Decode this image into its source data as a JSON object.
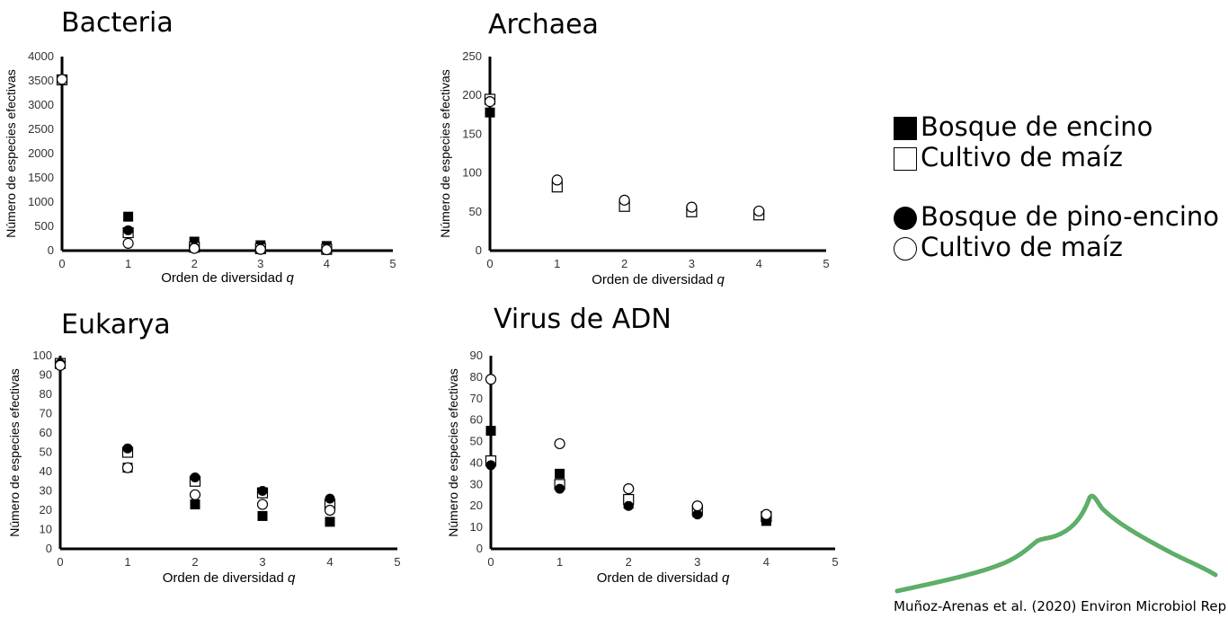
{
  "chart_data": [
    {
      "type": "scatter",
      "title": "Bacteria",
      "xlabel": "Orden de diversidad",
      "xlabel_var": "q",
      "ylabel": "Número de especies efectivas",
      "xlim": [
        0,
        5
      ],
      "ylim": [
        0,
        4000
      ],
      "xticks": [
        0,
        1,
        2,
        3,
        4,
        5
      ],
      "yticks": [
        0,
        500,
        1000,
        1500,
        2000,
        2500,
        3000,
        3500,
        4000
      ],
      "series": [
        {
          "marker": "square-filled",
          "points": [
            [
              0,
              3520
            ],
            [
              1,
              700
            ],
            [
              2,
              185
            ],
            [
              3,
              110
            ],
            [
              4,
              95
            ]
          ]
        },
        {
          "marker": "square-open",
          "points": [
            [
              0,
              3520
            ],
            [
              1,
              370
            ],
            [
              2,
              70
            ],
            [
              3,
              40
            ],
            [
              4,
              25
            ]
          ]
        },
        {
          "marker": "circle-filled",
          "points": [
            [
              0,
              3520
            ],
            [
              1,
              420
            ],
            [
              2,
              70
            ],
            [
              3,
              40
            ],
            [
              4,
              25
            ]
          ]
        },
        {
          "marker": "circle-open",
          "points": [
            [
              0,
              3530
            ],
            [
              1,
              150
            ],
            [
              2,
              45
            ],
            [
              3,
              25
            ],
            [
              4,
              18
            ]
          ]
        }
      ]
    },
    {
      "type": "scatter",
      "title": "Archaea",
      "xlabel": "Orden de diversidad",
      "xlabel_var": "q",
      "ylabel": "Número de especies efectivas",
      "xlim": [
        0,
        5
      ],
      "ylim": [
        0,
        250
      ],
      "xticks": [
        0,
        1,
        2,
        3,
        4,
        5
      ],
      "yticks": [
        0,
        50,
        100,
        150,
        200,
        250
      ],
      "series": [
        {
          "marker": "square-filled",
          "points": [
            [
              0,
              178
            ]
          ]
        },
        {
          "marker": "square-open",
          "points": [
            [
              0,
              195
            ],
            [
              1,
              82
            ],
            [
              2,
              57
            ],
            [
              3,
              50
            ],
            [
              4,
              46
            ]
          ]
        },
        {
          "marker": "circle-filled",
          "points": []
        },
        {
          "marker": "circle-open",
          "points": [
            [
              0,
              192
            ],
            [
              1,
              91
            ],
            [
              2,
              65
            ],
            [
              3,
              56
            ],
            [
              4,
              51
            ]
          ]
        }
      ]
    },
    {
      "type": "scatter",
      "title": "Eukarya",
      "xlabel": "Orden de diversidad",
      "xlabel_var": "q",
      "ylabel": "Número de especies efectivas",
      "xlim": [
        0,
        5
      ],
      "ylim": [
        0,
        100
      ],
      "xticks": [
        0,
        1,
        2,
        3,
        4,
        5
      ],
      "yticks": [
        0,
        10,
        20,
        30,
        40,
        50,
        60,
        70,
        80,
        90,
        100
      ],
      "series": [
        {
          "marker": "square-filled",
          "points": [
            [
              0,
              96
            ],
            [
              1,
              42
            ],
            [
              2,
              23
            ],
            [
              3,
              17
            ],
            [
              4,
              14
            ]
          ]
        },
        {
          "marker": "square-open",
          "points": [
            [
              0,
              96
            ],
            [
              1,
              50
            ],
            [
              2,
              35
            ],
            [
              3,
              29
            ],
            [
              4,
              23
            ]
          ]
        },
        {
          "marker": "circle-filled",
          "points": [
            [
              0,
              96
            ],
            [
              1,
              52
            ],
            [
              2,
              37
            ],
            [
              3,
              30
            ],
            [
              4,
              26
            ]
          ]
        },
        {
          "marker": "circle-open",
          "points": [
            [
              0,
              95
            ],
            [
              1,
              42
            ],
            [
              2,
              28
            ],
            [
              3,
              23
            ],
            [
              4,
              20
            ]
          ]
        }
      ]
    },
    {
      "type": "scatter",
      "title": "Virus de ADN",
      "xlabel": "Orden de diversidad",
      "xlabel_var": "q",
      "ylabel": "Número de especies efectivas",
      "xlim": [
        0,
        5
      ],
      "ylim": [
        0,
        90
      ],
      "xticks": [
        0,
        1,
        2,
        3,
        4,
        5
      ],
      "yticks": [
        0,
        10,
        20,
        30,
        40,
        50,
        60,
        70,
        80,
        90
      ],
      "series": [
        {
          "marker": "square-filled",
          "points": [
            [
              0,
              55
            ],
            [
              1,
              35
            ],
            [
              2,
              21
            ],
            [
              3,
              17
            ],
            [
              4,
              13
            ]
          ]
        },
        {
          "marker": "square-open",
          "points": [
            [
              0,
              41
            ],
            [
              1,
              30
            ],
            [
              2,
              23
            ],
            [
              3,
              18
            ],
            [
              4,
              15
            ]
          ]
        },
        {
          "marker": "circle-filled",
          "points": [
            [
              0,
              39
            ],
            [
              1,
              28
            ],
            [
              2,
              20
            ],
            [
              3,
              16
            ],
            [
              4,
              14
            ]
          ]
        },
        {
          "marker": "circle-open",
          "points": [
            [
              0,
              79
            ],
            [
              1,
              49
            ],
            [
              2,
              28
            ],
            [
              3,
              20
            ],
            [
              4,
              16
            ]
          ]
        }
      ]
    }
  ],
  "legend": {
    "items": [
      {
        "marker": "square-filled",
        "label": "Bosque de encino"
      },
      {
        "marker": "square-open",
        "label": "Cultivo de maíz"
      },
      {
        "marker": "circle-filled",
        "label": "Bosque de pino-encino"
      },
      {
        "marker": "circle-open",
        "label": "Cultivo de maíz"
      }
    ]
  },
  "citation": "Muñoz-Arenas et al. (2020) Environ Microbiol Rep",
  "colors": {
    "marker": "#000000",
    "axis": "#000000",
    "decoration": "#3f9a4a"
  }
}
